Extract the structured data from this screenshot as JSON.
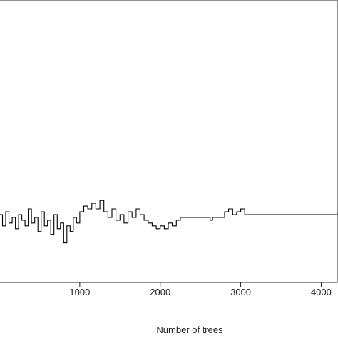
{
  "chart_data": {
    "type": "line",
    "title": "",
    "xlabel": "Number of trees",
    "ylabel": "",
    "xlim": [
      0,
      4200
    ],
    "ylim": [
      0,
      1
    ],
    "grid": false,
    "x_ticks": [
      {
        "value": 1000,
        "label": "1000"
      },
      {
        "value": 2000,
        "label": "2000"
      },
      {
        "value": 3000,
        "label": "3000"
      },
      {
        "value": 4000,
        "label": "4000"
      }
    ],
    "series": [
      {
        "name": "",
        "color": "#000000",
        "step": true,
        "x": [
          0,
          40,
          80,
          120,
          160,
          200,
          240,
          280,
          320,
          360,
          400,
          440,
          480,
          520,
          560,
          600,
          640,
          680,
          720,
          760,
          800,
          840,
          880,
          920,
          960,
          1000,
          1050,
          1100,
          1150,
          1200,
          1250,
          1300,
          1350,
          1400,
          1450,
          1500,
          1550,
          1600,
          1650,
          1700,
          1750,
          1800,
          1850,
          1900,
          1950,
          2000,
          2050,
          2100,
          2150,
          2200,
          2250,
          2600,
          2620,
          2650,
          2780,
          2800,
          2850,
          2900,
          2950,
          3000,
          3050,
          4150,
          4200
        ],
        "y": [
          0.24,
          0.2,
          0.25,
          0.21,
          0.23,
          0.19,
          0.24,
          0.22,
          0.2,
          0.26,
          0.21,
          0.23,
          0.18,
          0.25,
          0.2,
          0.22,
          0.17,
          0.24,
          0.19,
          0.21,
          0.14,
          0.2,
          0.18,
          0.23,
          0.21,
          0.25,
          0.27,
          0.26,
          0.28,
          0.26,
          0.29,
          0.25,
          0.23,
          0.26,
          0.22,
          0.24,
          0.21,
          0.25,
          0.23,
          0.26,
          0.24,
          0.22,
          0.21,
          0.2,
          0.19,
          0.2,
          0.19,
          0.21,
          0.2,
          0.22,
          0.23,
          0.23,
          0.22,
          0.23,
          0.23,
          0.25,
          0.26,
          0.24,
          0.25,
          0.26,
          0.24,
          0.24,
          0.25
        ]
      }
    ]
  }
}
